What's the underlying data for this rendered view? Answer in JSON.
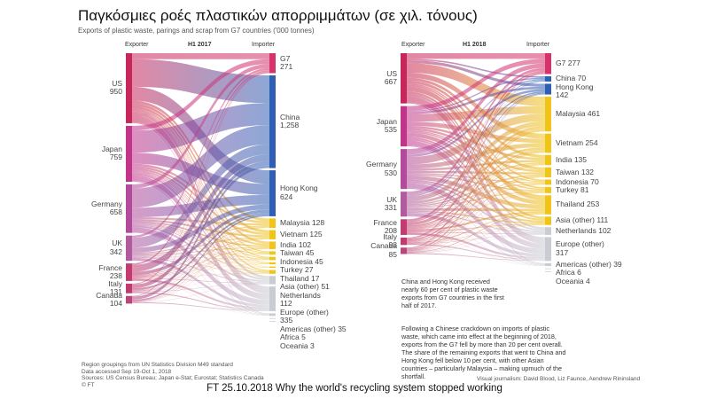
{
  "header": {
    "title": "Παγκόσμιες ροές πλαστικών απορριμμάτων (σε χιλ. τόνους)",
    "subtitle": "Exports of plastic waste, parings and scrap from G7 countries ('000 tonnes)"
  },
  "colors": {
    "US": "#c8265a",
    "Japan": "#c2338a",
    "Germany": "#b34a9c",
    "UK": "#b15a9e",
    "France": "#c33b70",
    "Italy": "#c03a6f",
    "Canada": "#b9457a",
    "G7": "#d6336c",
    "China": "#2e5fb4",
    "Hong Kong": "#2e5fb4",
    "Asia": "#f0c419",
    "Other": "#c9cdd3"
  },
  "panels": [
    {
      "id": "h1-2017",
      "exporter_header": "Exporter",
      "period": "H1 2017",
      "importer_header": "Importer",
      "exporters": [
        {
          "name": "US",
          "value": "950",
          "v": 950
        },
        {
          "name": "Japan",
          "value": "759",
          "v": 759
        },
        {
          "name": "Germany",
          "value": "658",
          "v": 658
        },
        {
          "name": "UK",
          "value": "342",
          "v": 342
        },
        {
          "name": "France",
          "value": "238",
          "v": 238
        },
        {
          "name": "Italy",
          "value": "131",
          "v": 131
        },
        {
          "name": "Canada",
          "value": "104",
          "v": 104
        }
      ],
      "importers": [
        {
          "name": "G7",
          "value": "271",
          "v": 271,
          "group": "G7",
          "two_line": true
        },
        {
          "name": "China",
          "value": "1,258",
          "v": 1258,
          "group": "China",
          "two_line": true
        },
        {
          "name": "Hong Kong",
          "value": "624",
          "v": 624,
          "group": "Hong Kong",
          "two_line": true
        },
        {
          "name": "Malaysia",
          "value": "128",
          "v": 128,
          "group": "Asia"
        },
        {
          "name": "Vietnam",
          "value": "125",
          "v": 125,
          "group": "Asia"
        },
        {
          "name": "India",
          "value": "102",
          "v": 102,
          "group": "Asia"
        },
        {
          "name": "Taiwan",
          "value": "45",
          "v": 45,
          "group": "Asia"
        },
        {
          "name": "Indonesia",
          "value": "45",
          "v": 45,
          "group": "Asia"
        },
        {
          "name": "Turkey",
          "value": "27",
          "v": 27,
          "group": "Asia"
        },
        {
          "name": "Thailand",
          "value": "17",
          "v": 17,
          "group": "Asia"
        },
        {
          "name": "Asia (other)",
          "value": "51",
          "v": 51,
          "group": "Asia"
        },
        {
          "name": "Netherlands",
          "value": "112",
          "v": 112,
          "group": "Other",
          "two_line": true
        },
        {
          "name": "Europe (other)",
          "value": "335",
          "v": 335,
          "group": "Other",
          "two_line": true
        },
        {
          "name": "Americas (other)",
          "value": "35",
          "v": 35,
          "group": "Other"
        },
        {
          "name": "Africa",
          "value": "5",
          "v": 5,
          "group": "Other"
        },
        {
          "name": "Oceania",
          "value": "3",
          "v": 3,
          "group": "Other"
        }
      ],
      "note": ""
    },
    {
      "id": "h1-2018",
      "exporter_header": "Exporter",
      "period": "H1 2018",
      "importer_header": "Importer",
      "exporters": [
        {
          "name": "US",
          "value": "667",
          "v": 667
        },
        {
          "name": "Japan",
          "value": "535",
          "v": 535
        },
        {
          "name": "Germany",
          "value": "530",
          "v": 530
        },
        {
          "name": "UK",
          "value": "331",
          "v": 331
        },
        {
          "name": "France",
          "value": "208",
          "v": 208
        },
        {
          "name": "Italy",
          "value": "98",
          "v": 98
        },
        {
          "name": "Canada",
          "value": "85",
          "v": 85
        }
      ],
      "importers": [
        {
          "name": "G7",
          "value": "277",
          "v": 277,
          "group": "G7"
        },
        {
          "name": "China",
          "value": "70",
          "v": 70,
          "group": "China"
        },
        {
          "name": "Hong Kong",
          "value": "142",
          "v": 142,
          "group": "Hong Kong",
          "two_line": true
        },
        {
          "name": "Malaysia",
          "value": "461",
          "v": 461,
          "group": "Asia"
        },
        {
          "name": "Vietnam",
          "value": "254",
          "v": 254,
          "group": "Asia"
        },
        {
          "name": "India",
          "value": "135",
          "v": 135,
          "group": "Asia"
        },
        {
          "name": "Taiwan",
          "value": "132",
          "v": 132,
          "group": "Asia"
        },
        {
          "name": "Indonesia",
          "value": "70",
          "v": 70,
          "group": "Asia"
        },
        {
          "name": "Turkey",
          "value": "81",
          "v": 81,
          "group": "Asia"
        },
        {
          "name": "Thailand",
          "value": "253",
          "v": 253,
          "group": "Asia"
        },
        {
          "name": "Asia (other)",
          "value": "111",
          "v": 111,
          "group": "Asia"
        },
        {
          "name": "Netherlands",
          "value": "102",
          "v": 102,
          "group": "Other"
        },
        {
          "name": "Europe (other)",
          "value": "317",
          "v": 317,
          "group": "Other",
          "two_line": true
        },
        {
          "name": "Americas (other)",
          "value": "39",
          "v": 39,
          "group": "Other"
        },
        {
          "name": "Africa",
          "value": "6",
          "v": 6,
          "group": "Other"
        },
        {
          "name": "Oceania",
          "value": "4",
          "v": 4,
          "group": "Other"
        }
      ]
    }
  ],
  "notes": {
    "china_hk": "China and Hong Kong received nearly 60 per cent of plastic waste exports from G7 countries in the first half of 2017.",
    "crackdown": "Following a Chinese crackdown on imports of plastic waste, which came into effect at the beginning of 2018, exports from the G7 fell by more than 20 per cent overall. The share of the remaining exports that went to China and Hong Kong fell below 10 per cent, with other Asian countries – particularly Malaysia – making upmuch of the shortfall."
  },
  "sources": {
    "line1": "Region groupings from UN Statistics Division M49 standard",
    "line2": "Data accessed Sep 19-Oct 1, 2018",
    "line3": "Sources: US Census Bureau; Japan e-Stat; Eurostat; Statistics Canada",
    "line4": "© FT"
  },
  "credit": "Visual journalism: David Blood, Liz Faunce, Aendrew Rininsland",
  "footer": "FT 25.10.2018  Why the world's recycling system stopped working"
}
